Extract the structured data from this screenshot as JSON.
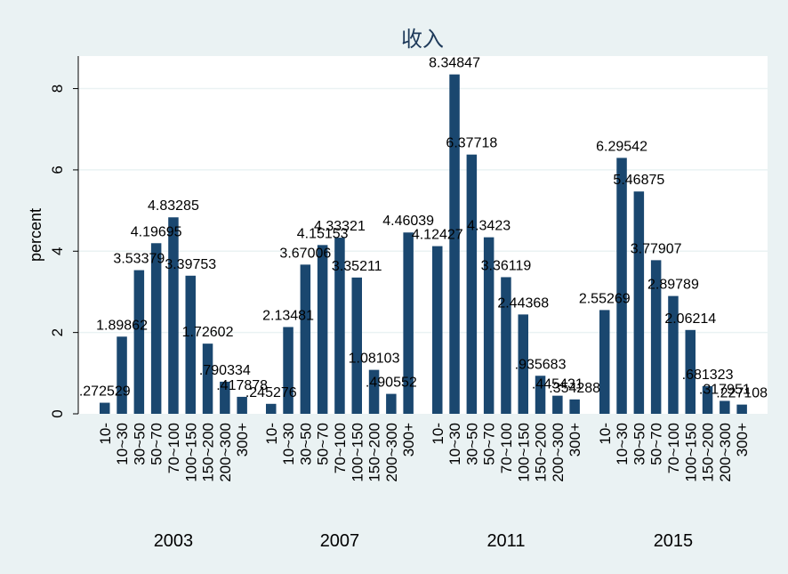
{
  "chart_data": {
    "type": "bar",
    "title": "收入",
    "ylabel": "percent",
    "xlabel": "",
    "ylim": [
      0,
      8.8
    ],
    "yticks": [
      0,
      2,
      4,
      6,
      8
    ],
    "grid": true,
    "categories": [
      "10-",
      "10~30",
      "30~50",
      "50~70",
      "70~100",
      "100~150",
      "150~200",
      "200~300",
      "300+"
    ],
    "groups": [
      {
        "name": "2003",
        "values": [
          0.272529,
          1.89862,
          3.53379,
          4.19695,
          4.83285,
          3.39753,
          1.72602,
          0.790334,
          0.417878
        ],
        "labels": [
          ".272529",
          "1.89862",
          "3.53379",
          "4.19695",
          "4.83285",
          "3.39753",
          "1.72602",
          ".790334",
          ".417878"
        ]
      },
      {
        "name": "2007",
        "values": [
          0.245276,
          2.13481,
          3.67006,
          4.15153,
          4.33321,
          3.35211,
          1.08103,
          0.490552,
          4.46039
        ],
        "labels": [
          ".245276",
          "2.13481",
          "3.67006",
          "4.15153",
          "4.33321",
          "3.35211",
          "1.08103",
          ".490552",
          "4.46039"
        ]
      },
      {
        "name": "2011",
        "values": [
          4.12427,
          8.34847,
          6.37718,
          4.3423,
          3.36119,
          2.44368,
          0.935683,
          0.445431,
          0.354288
        ],
        "labels": [
          "4.12427",
          "8.34847",
          "6.37718",
          "4.3423",
          "3.36119",
          "2.44368",
          ".935683",
          ".445431",
          ".354288"
        ]
      },
      {
        "name": "2015",
        "values": [
          2.55269,
          6.29542,
          5.46875,
          3.77907,
          2.89789,
          2.06214,
          0.681323,
          0.317951,
          0.227108
        ],
        "labels": [
          "2.55269",
          "6.29542",
          "5.46875",
          "3.77907",
          "2.89789",
          "2.06214",
          ".681323",
          ".317951",
          ".227108"
        ]
      }
    ],
    "colors": {
      "bar": "#1a476f",
      "background": "#eaf2f3",
      "plot": "#ffffff",
      "title": "#1e3a5a"
    }
  }
}
